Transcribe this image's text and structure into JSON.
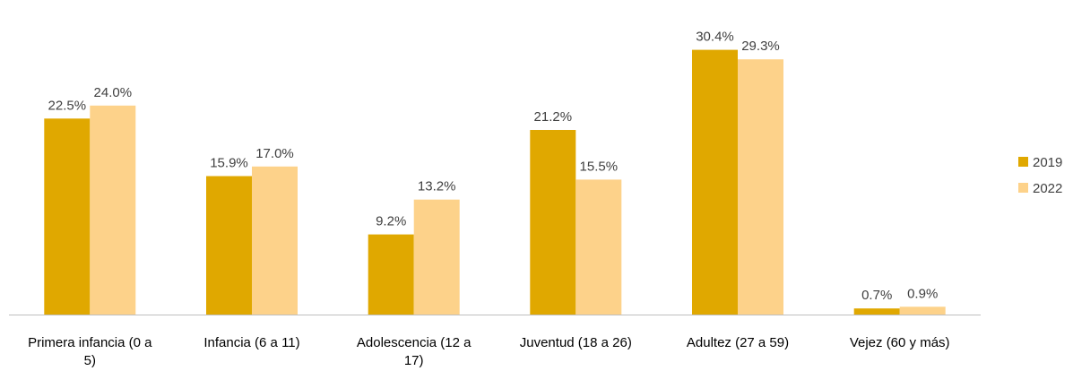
{
  "chart_data": {
    "type": "bar",
    "title": "",
    "xlabel": "",
    "ylabel": "",
    "ylim": [
      0,
      32
    ],
    "grid": false,
    "legend_placement": "right",
    "categories": [
      "Primera infancia (0 a 5)",
      "Infancia (6 a 11)",
      "Adolescencia (12 a 17)",
      "Juventud (18 a 26)",
      "Adultez (27 a 59)",
      "Vejez (60 y más)"
    ],
    "category_lines": [
      [
        "Primera infancia (0 a",
        "5)"
      ],
      [
        "Infancia (6 a 11)"
      ],
      [
        "Adolescencia (12 a",
        "17)"
      ],
      [
        "Juventud (18 a 26)"
      ],
      [
        "Adultez (27 a 59)"
      ],
      [
        "Vejez (60 y más)"
      ]
    ],
    "series": [
      {
        "name": "2019",
        "color": "#E0A800",
        "values": [
          22.5,
          15.9,
          9.2,
          21.2,
          30.4,
          0.7
        ],
        "labels": [
          "22.5%",
          "15.9%",
          "9.2%",
          "21.2%",
          "30.4%",
          "0.7%"
        ]
      },
      {
        "name": "2022",
        "color": "#FDD28A",
        "values": [
          24.0,
          17.0,
          13.2,
          15.5,
          29.3,
          0.9
        ],
        "labels": [
          "24.0%",
          "17.0%",
          "13.2%",
          "15.5%",
          "29.3%",
          "0.9%"
        ]
      }
    ]
  }
}
